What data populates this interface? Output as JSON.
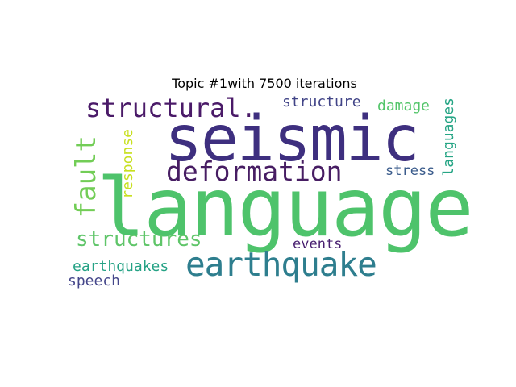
{
  "title": "Topic #1with 7500 iterations",
  "words": [
    {
      "text": "language",
      "color": "#4ec36b"
    },
    {
      "text": "seismic",
      "color": "#3e2f7f"
    },
    {
      "text": "earthquake",
      "color": "#2e7e8e"
    },
    {
      "text": "structural.",
      "color": "#4a1a68"
    },
    {
      "text": "deformation",
      "color": "#471d63"
    },
    {
      "text": "structures",
      "color": "#5fc569"
    },
    {
      "text": "fault",
      "color": "#72cd56"
    },
    {
      "text": "response",
      "color": "#c8e020"
    },
    {
      "text": "structure",
      "color": "#414487"
    },
    {
      "text": "damage",
      "color": "#53c56a"
    },
    {
      "text": "languages",
      "color": "#26a585"
    },
    {
      "text": "stress",
      "color": "#3b5c8c"
    },
    {
      "text": "events",
      "color": "#481f70"
    },
    {
      "text": "earthquakes",
      "color": "#25a285"
    },
    {
      "text": "speech",
      "color": "#44468a"
    }
  ]
}
